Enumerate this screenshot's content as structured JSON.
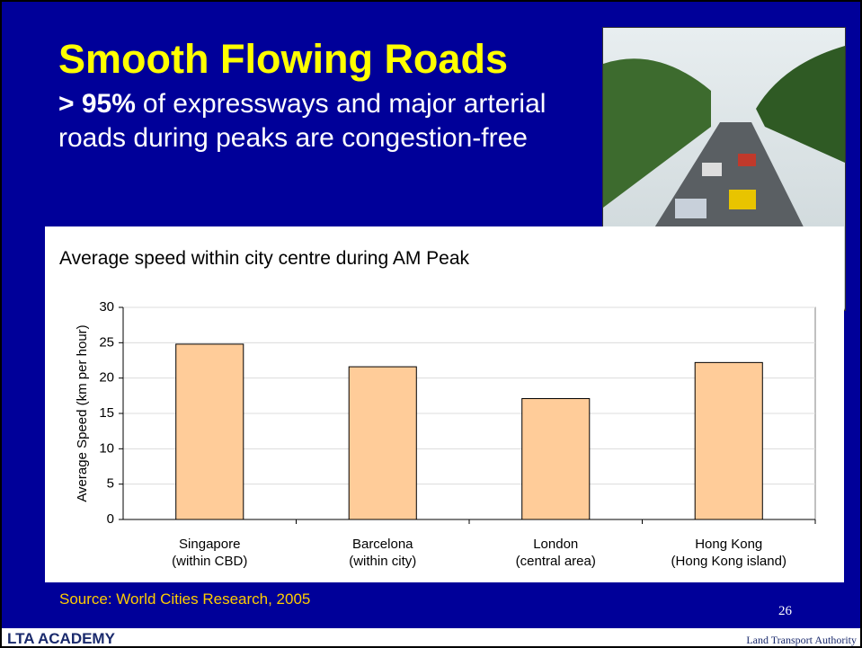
{
  "slide": {
    "title": "Smooth Flowing Roads",
    "highlight": "> 95%",
    "body": "of expressways and major arterial roads during peaks are congestion-free",
    "source": "Source: World Cities Research, 2005",
    "page_number": "26",
    "logo_left": "LTA ACADEMY",
    "logo_right": "Land Transport Authority"
  },
  "chart_data": {
    "type": "bar",
    "title": "Average speed within city centre during AM Peak",
    "y_label": "Average Speed (km per hour)",
    "categories": [
      "Singapore\n(within CBD)",
      "Barcelona\n(within city)",
      "London\n(central area)",
      "Hong Kong\n(Hong Kong island)"
    ],
    "values": [
      24.8,
      21.6,
      17.1,
      22.2
    ],
    "color": "#ffcc99",
    "ylim": [
      0,
      30
    ],
    "yticks": [
      0,
      5,
      10,
      15,
      20,
      25,
      30
    ],
    "grid": true
  }
}
